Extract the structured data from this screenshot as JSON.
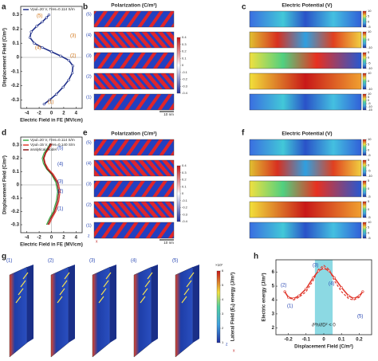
{
  "panel_letters": [
    "a",
    "b",
    "c",
    "d",
    "e",
    "f",
    "g",
    "h"
  ],
  "chart_data": [
    {
      "type": "line",
      "xlabel": "Electric Field in FE (MV/cm)",
      "ylabel": "Displacement Field (C/m²)",
      "xlim": [
        -5,
        5
      ],
      "ylim": [
        -0.36,
        0.36
      ],
      "xticks": [
        -4,
        -2,
        0,
        2,
        4
      ],
      "yticks": [
        -0.3,
        -0.2,
        -0.1,
        0,
        0.1,
        0.2,
        0.3
      ],
      "zero_lines": true,
      "series": [
        {
          "name": "Vpul=20 V, Γres=0.114 S/m",
          "color": "#1f2f8a",
          "markers": true,
          "x": [
            -1.2,
            -0.3,
            0.8,
            1.9,
            2.8,
            3.4,
            3.5,
            2.8,
            1.5,
            0,
            -1.5,
            -2.8,
            -3.5,
            -3.3,
            -2.4,
            -1.5,
            -0.8,
            -0.4
          ],
          "values": [
            -0.33,
            -0.3,
            -0.26,
            -0.21,
            -0.16,
            -0.11,
            -0.06,
            -0.02,
            0.01,
            0.04,
            0.07,
            0.1,
            0.14,
            0.18,
            0.22,
            0.25,
            0.28,
            0.3
          ]
        }
      ],
      "annotations": [
        "(1)",
        "(2)",
        "(3)",
        "(4)",
        "(5)"
      ]
    },
    {
      "type": "line",
      "xlabel": "Electric Field in FE (MV/cm)",
      "ylabel": "Displacement Field (C/m²)",
      "xlim": [
        -5,
        5
      ],
      "ylim": [
        -0.36,
        0.36
      ],
      "xticks": [
        -4,
        -2,
        0,
        2,
        4
      ],
      "yticks": [
        -0.3,
        -0.2,
        -0.1,
        0,
        0.1,
        0.2,
        0.3
      ],
      "zero_lines": true,
      "series": [
        {
          "name": "Vpul=20 V, Γres=0.114 S/m",
          "color": "#3cb04a",
          "markers": false,
          "x": [
            -0.8,
            -0.3,
            0.3,
            0.8,
            1.0,
            0.7,
            0,
            -0.8,
            -1.3,
            -1.5,
            -1.2,
            -0.6,
            -0.2
          ],
          "values": [
            -0.3,
            -0.25,
            -0.2,
            -0.12,
            -0.05,
            0.02,
            0.08,
            0.12,
            0.16,
            0.2,
            0.24,
            0.28,
            0.31
          ]
        },
        {
          "name": "Vpul=15 V, Γres=0.140 S/m",
          "color": "#e03a2f",
          "markers": false,
          "x": [
            -0.4,
            0.1,
            0.7,
            1.2,
            1.4,
            1.1,
            0.3,
            -0.5,
            -1.0,
            -1.2,
            -0.9,
            -0.3,
            0.1
          ],
          "values": [
            -0.3,
            -0.25,
            -0.2,
            -0.12,
            -0.05,
            0.02,
            0.08,
            0.12,
            0.16,
            0.2,
            0.24,
            0.28,
            0.31
          ]
        },
        {
          "name": "analytical model",
          "color": "#8b1a1a",
          "markers": false,
          "x": [
            -0.6,
            -0.1,
            0.5,
            1.0,
            1.2,
            0.9,
            0.1,
            -0.7,
            -1.1,
            -1.3,
            -1.0,
            -0.5,
            -0.1
          ],
          "values": [
            -0.3,
            -0.25,
            -0.2,
            -0.12,
            -0.05,
            0.02,
            0.08,
            0.12,
            0.16,
            0.2,
            0.24,
            0.28,
            0.31
          ]
        }
      ],
      "annotations": [
        "(1)",
        "(2)",
        "(3)",
        "(4)",
        "(5)"
      ]
    },
    {
      "type": "line",
      "xlabel": "Displacement Field (C/m²)",
      "ylabel": "Electric energy (J/m³)",
      "xlim": [
        -0.27,
        0.27
      ],
      "ylim": [
        1.5,
        6.9
      ],
      "xticks": [
        -0.2,
        -0.1,
        0,
        0.1,
        0.2
      ],
      "yticks": [
        2,
        3,
        4,
        5,
        6
      ],
      "zero_lines": false,
      "shaded_range": [
        -0.05,
        0.05
      ],
      "shaded_color": "#6fd0dc",
      "annotation_text": "∂²h/∂D² < 0",
      "series": [
        {
          "color": "#e03a2f",
          "markers": true,
          "x": [
            -0.22,
            -0.2,
            -0.17,
            -0.14,
            -0.1,
            -0.06,
            -0.03,
            0,
            0.03,
            0.06,
            0.1,
            0.14,
            0.17,
            0.2,
            0.22
          ],
          "values": [
            4.6,
            4.2,
            4.1,
            4.3,
            4.8,
            5.6,
            6.1,
            6.3,
            6.1,
            5.6,
            4.9,
            4.3,
            4.1,
            4.3,
            4.6
          ]
        },
        {
          "color": "#e03a2f",
          "dash": true,
          "markers": false,
          "x": [
            -0.22,
            -0.2,
            -0.17,
            -0.14,
            -0.1,
            -0.06,
            -0.03,
            0,
            0.03,
            0.06,
            0.1,
            0.14,
            0.17,
            0.2,
            0.22
          ],
          "values": [
            4.6,
            4.2,
            4.0,
            4.2,
            4.6,
            5.4,
            6.2,
            6.5,
            6.2,
            5.4,
            4.6,
            4.1,
            4.0,
            4.2,
            4.6
          ]
        }
      ],
      "annotations": [
        "(1)",
        "(2)",
        "(3)",
        "(4)",
        "(5)"
      ]
    }
  ],
  "panel_b": {
    "title": "Polarization (C/m²)",
    "labels": [
      "(5)",
      "(4)",
      "(3)",
      "(2)",
      "(1)"
    ],
    "colorbar_ticks": [
      0.4,
      0.3,
      0.2,
      0.1,
      0,
      -0.1,
      -0.2,
      -0.3,
      -0.4
    ],
    "scale_bar": "10 nm"
  },
  "panel_c": {
    "title": "Electric Potential (V)",
    "colorbars": [
      [
        10,
        5,
        0,
        -5
      ],
      [
        10,
        0,
        -10
      ],
      [
        5,
        0,
        -5,
        -10
      ],
      [
        10,
        0,
        -10
      ],
      [
        10,
        5,
        0,
        -5,
        -10,
        -15
      ]
    ]
  },
  "panel_e": {
    "title": "Polarization (C/m²)",
    "labels": [
      "(5)",
      "(4)",
      "(3)",
      "(2)",
      "(1)"
    ],
    "colorbar_ticks": [
      0.4,
      0.3,
      0.2,
      0.1,
      0,
      -0.1,
      -0.2,
      -0.3,
      -0.4
    ],
    "scale_bar": "10 nm",
    "axis_labels": [
      "z",
      "x"
    ]
  },
  "panel_f": {
    "title": "Electric Potential (V)",
    "colorbars": [
      [
        10,
        5,
        0,
        -5
      ],
      [
        5,
        0,
        -5,
        -10
      ],
      [
        5,
        0,
        -5
      ],
      [
        5,
        0,
        -5
      ],
      [
        10,
        5,
        0,
        -5
      ]
    ]
  },
  "panel_g": {
    "labels": [
      "(1)",
      "(2)",
      "(3)",
      "(4)",
      "(5)"
    ],
    "colorbar_title": "Lateral Field (Eₓ) energy (J/m³)",
    "colorbar_exponent": "×10⁷",
    "colorbar_ticks": [
      1,
      2,
      3,
      4,
      5,
      6
    ],
    "axis_labels": [
      "z",
      "x"
    ]
  }
}
